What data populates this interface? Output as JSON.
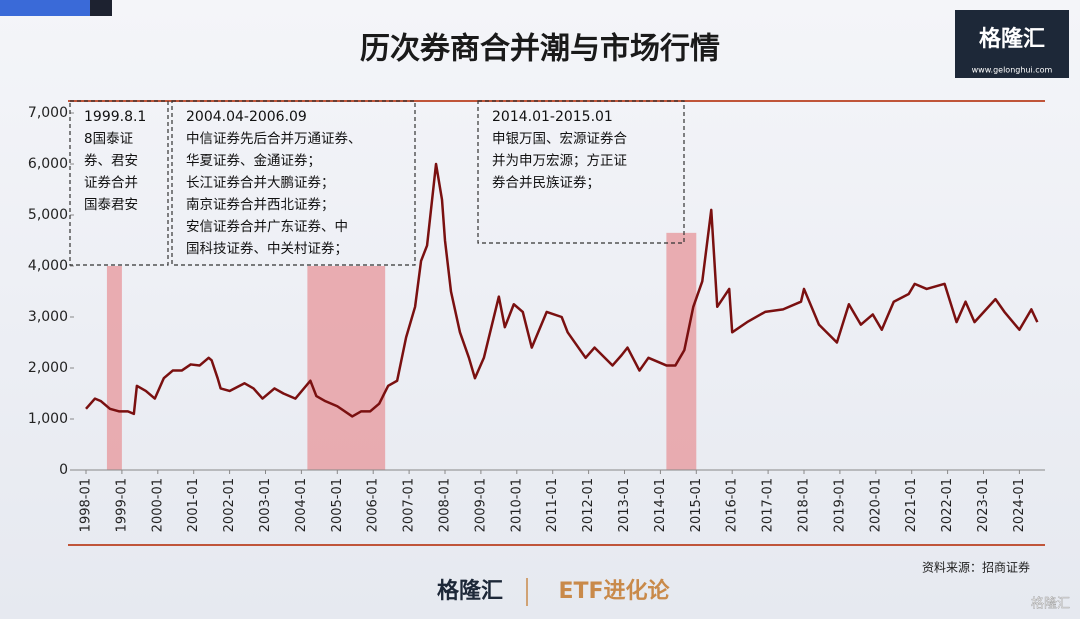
{
  "chart_data": {
    "type": "line",
    "title": "历次券商合并潮与市场行情",
    "x": [
      "1998-01",
      "1998-04",
      "1998-06",
      "1998-09",
      "1998-12",
      "1999-03",
      "1999-05",
      "1999-06",
      "1999-09",
      "1999-12",
      "2000-03",
      "2000-06",
      "2000-09",
      "2000-12",
      "2001-03",
      "2001-06",
      "2001-07",
      "2001-09",
      "2001-10",
      "2002-01",
      "2002-06",
      "2002-09",
      "2002-12",
      "2003-04",
      "2003-07",
      "2003-11",
      "2004-04",
      "2004-06",
      "2004-09",
      "2005-01",
      "2005-06",
      "2005-09",
      "2005-12",
      "2006-03",
      "2006-06",
      "2006-09",
      "2006-12",
      "2007-03",
      "2007-05",
      "2007-07",
      "2007-10",
      "2007-12",
      "2008-01",
      "2008-03",
      "2008-06",
      "2008-09",
      "2008-11",
      "2009-02",
      "2009-07",
      "2009-09",
      "2009-12",
      "2010-03",
      "2010-06",
      "2010-11",
      "2011-04",
      "2011-06",
      "2011-12",
      "2012-03",
      "2012-09",
      "2012-12",
      "2013-02",
      "2013-06",
      "2013-09",
      "2014-03",
      "2014-06",
      "2014-09",
      "2014-12",
      "2015-03",
      "2015-06",
      "2015-08",
      "2015-12",
      "2016-01",
      "2016-06",
      "2016-12",
      "2017-06",
      "2017-12",
      "2018-01",
      "2018-06",
      "2018-12",
      "2019-04",
      "2019-08",
      "2019-12",
      "2020-03",
      "2020-07",
      "2020-12",
      "2021-02",
      "2021-06",
      "2021-12",
      "2022-04",
      "2022-07",
      "2022-10",
      "2023-05",
      "2023-08",
      "2024-01",
      "2024-05",
      "2024-07"
    ],
    "series": [
      {
        "color": "#7a1010",
        "values": [
          1200,
          1400,
          1350,
          1200,
          1150,
          1150,
          1100,
          1650,
          1550,
          1400,
          1800,
          1950,
          1950,
          2070,
          2050,
          2200,
          2150,
          1800,
          1600,
          1550,
          1700,
          1600,
          1400,
          1600,
          1500,
          1400,
          1750,
          1450,
          1350,
          1250,
          1050,
          1150,
          1150,
          1300,
          1650,
          1750,
          2600,
          3200,
          4100,
          4400,
          6000,
          5300,
          4500,
          3500,
          2700,
          2200,
          1800,
          2200,
          3400,
          2800,
          3250,
          3100,
          2400,
          3100,
          3000,
          2700,
          2200,
          2400,
          2050,
          2250,
          2400,
          1950,
          2200,
          2050,
          2050,
          2350,
          3200,
          3700,
          5100,
          3200,
          3550,
          2700,
          2900,
          3100,
          3150,
          3300,
          3550,
          2850,
          2500,
          3250,
          2850,
          3050,
          2750,
          3300,
          3450,
          3650,
          3550,
          3650,
          2900,
          3300,
          2900,
          3350,
          3100,
          2750,
          3150,
          2900
        ]
      }
    ],
    "ylim": [
      0,
      7000
    ],
    "yticks": [
      0,
      {
        "value": 1000,
        "label": "1,000"
      },
      {
        "value": 2000,
        "label": "2,000"
      },
      {
        "value": 3000,
        "label": "3,000"
      },
      {
        "value": 4000,
        "label": "4,000"
      },
      {
        "value": 5000,
        "label": "5,000"
      },
      {
        "value": 6000,
        "label": "6,000"
      },
      {
        "value": 7000,
        "label": "7,000"
      }
    ],
    "xticks": [
      "1998-01",
      "1999-01",
      "2000-01",
      "2001-01",
      "2002-01",
      "2003-01",
      "2004-01",
      "2005-01",
      "2006-01",
      "2007-01",
      "2008-01",
      "2009-01",
      "2010-01",
      "2011-01",
      "2012-01",
      "2013-01",
      "2014-01",
      "2015-01",
      "2016-01",
      "2017-01",
      "2018-01",
      "2019-01",
      "2020-01",
      "2021-01",
      "2022-01",
      "2023-01",
      "2024-01"
    ],
    "shaded": [
      {
        "start": "1998-08",
        "end": "1999-01",
        "top": 4000,
        "color": "#e8a0a4"
      },
      {
        "start": "2004-03",
        "end": "2006-05",
        "top": 4000,
        "color": "#e8a0a4"
      },
      {
        "start": "2014-03",
        "end": "2015-01",
        "top": 4650,
        "color": "#e8a0a4"
      }
    ],
    "annotations": [
      {
        "lines": [
          "1999.8.1",
          "8国泰证",
          "券、君安",
          "证券合并",
          "国泰君安"
        ]
      },
      {
        "lines": [
          "2004.04-2006.09",
          "中信证券先后合并万通证券、",
          "华夏证券、金通证券；",
          "长江证券合并大鹏证券；",
          "南京证券合并西北证券；",
          "安信证券合并广东证券、中",
          "国科技证券、中关村证券；"
        ]
      },
      {
        "lines": [
          "2014.01-2015.01",
          "申银万国、宏源证券合",
          "并为申万宏源；方正证",
          "券合并民族证券；"
        ]
      }
    ],
    "source": "资料来源：招商证券",
    "logo": "格隆汇",
    "logo_url": "www.gelonghui.com",
    "footer_brand": "格隆汇",
    "footer_channel": "ETF进化论",
    "watermark": "格隆汇"
  }
}
